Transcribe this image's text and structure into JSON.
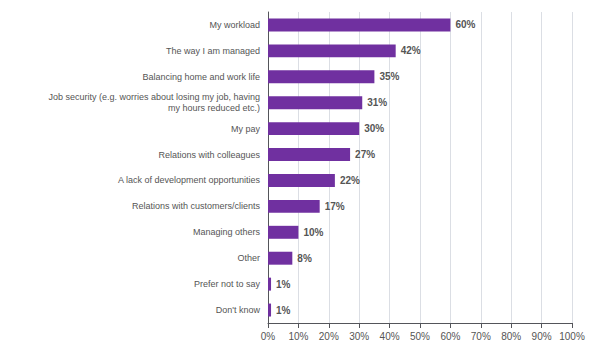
{
  "chart_data": {
    "type": "bar",
    "orientation": "horizontal",
    "categories": [
      "Don't know",
      "Prefer not to say",
      "Other",
      "Managing others",
      "Relations with customers/clients",
      "A lack of development opportunities",
      "Relations with colleagues",
      "My pay",
      "Job security (e.g. worries about losing my job, having\nmy hours reduced etc.)",
      "Balancing home and work life",
      "The way I am managed",
      "My workload"
    ],
    "values": [
      1,
      1,
      8,
      10,
      17,
      22,
      27,
      30,
      31,
      35,
      42,
      60
    ],
    "value_labels": [
      "1%",
      "1%",
      "8%",
      "10%",
      "17%",
      "22%",
      "27%",
      "30%",
      "31%",
      "35%",
      "42%",
      "60%"
    ],
    "data_labels": true,
    "color": "#7030a0",
    "xlim": [
      0,
      100
    ],
    "xticks": [
      {
        "value": 0,
        "label": "0%"
      },
      {
        "value": 10,
        "label": "10%"
      },
      {
        "value": 20,
        "label": "20%"
      },
      {
        "value": 30,
        "label": "30%"
      },
      {
        "value": 40,
        "label": "40%"
      },
      {
        "value": 50,
        "label": "50%"
      },
      {
        "value": 60,
        "label": "60%"
      },
      {
        "value": 70,
        "label": "70%"
      },
      {
        "value": 80,
        "label": "80%"
      },
      {
        "value": 90,
        "label": "90%"
      },
      {
        "value": 100,
        "label": "100%"
      }
    ],
    "grid": true
  }
}
